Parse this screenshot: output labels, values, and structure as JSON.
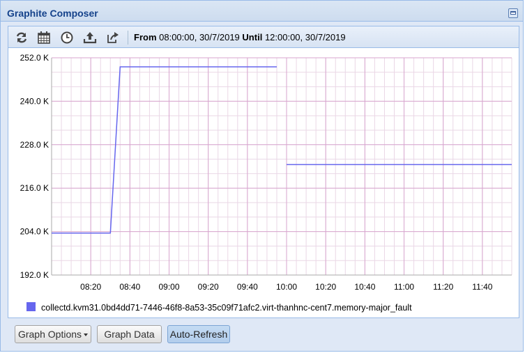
{
  "window": {
    "title": "Graphite Composer"
  },
  "toolbar": {
    "from_label": "From",
    "from_value": "08:00:00, 30/7/2019",
    "until_label": "Until",
    "until_value": "12:00:00, 30/7/2019",
    "icons": [
      "refresh-icon",
      "calendar-icon",
      "clock-icon",
      "upload-icon",
      "share-icon"
    ]
  },
  "chart_data": {
    "type": "line",
    "title": "",
    "xlabel": "",
    "ylabel": "",
    "x_ticks": [
      "08:20",
      "08:40",
      "09:00",
      "09:20",
      "09:40",
      "10:00",
      "10:20",
      "10:40",
      "11:00",
      "11:20",
      "11:40"
    ],
    "y_ticks": [
      "192.0 K",
      "204.0 K",
      "216.0 K",
      "228.0 K",
      "240.0 K",
      "252.0 K"
    ],
    "xlim_minutes": [
      0,
      235
    ],
    "ylim": [
      192000,
      252000
    ],
    "series": [
      {
        "name": "collectd.kvm31.0bd4dd71-7446-46f8-8a53-35c09f71afc2.virt-thanhnc-cent7.memory-major_fault",
        "color": "#6666ee",
        "segments": [
          [
            [
              0,
              203600
            ],
            [
              30,
              203600
            ],
            [
              35,
              249500
            ],
            [
              115,
              249500
            ]
          ],
          [
            [
              120,
              222500
            ],
            [
              235,
              222500
            ]
          ]
        ]
      }
    ],
    "grid": true,
    "legend": "bottom-left"
  },
  "buttons": {
    "graph_options": "Graph Options",
    "graph_data": "Graph Data",
    "auto_refresh": "Auto-Refresh"
  }
}
